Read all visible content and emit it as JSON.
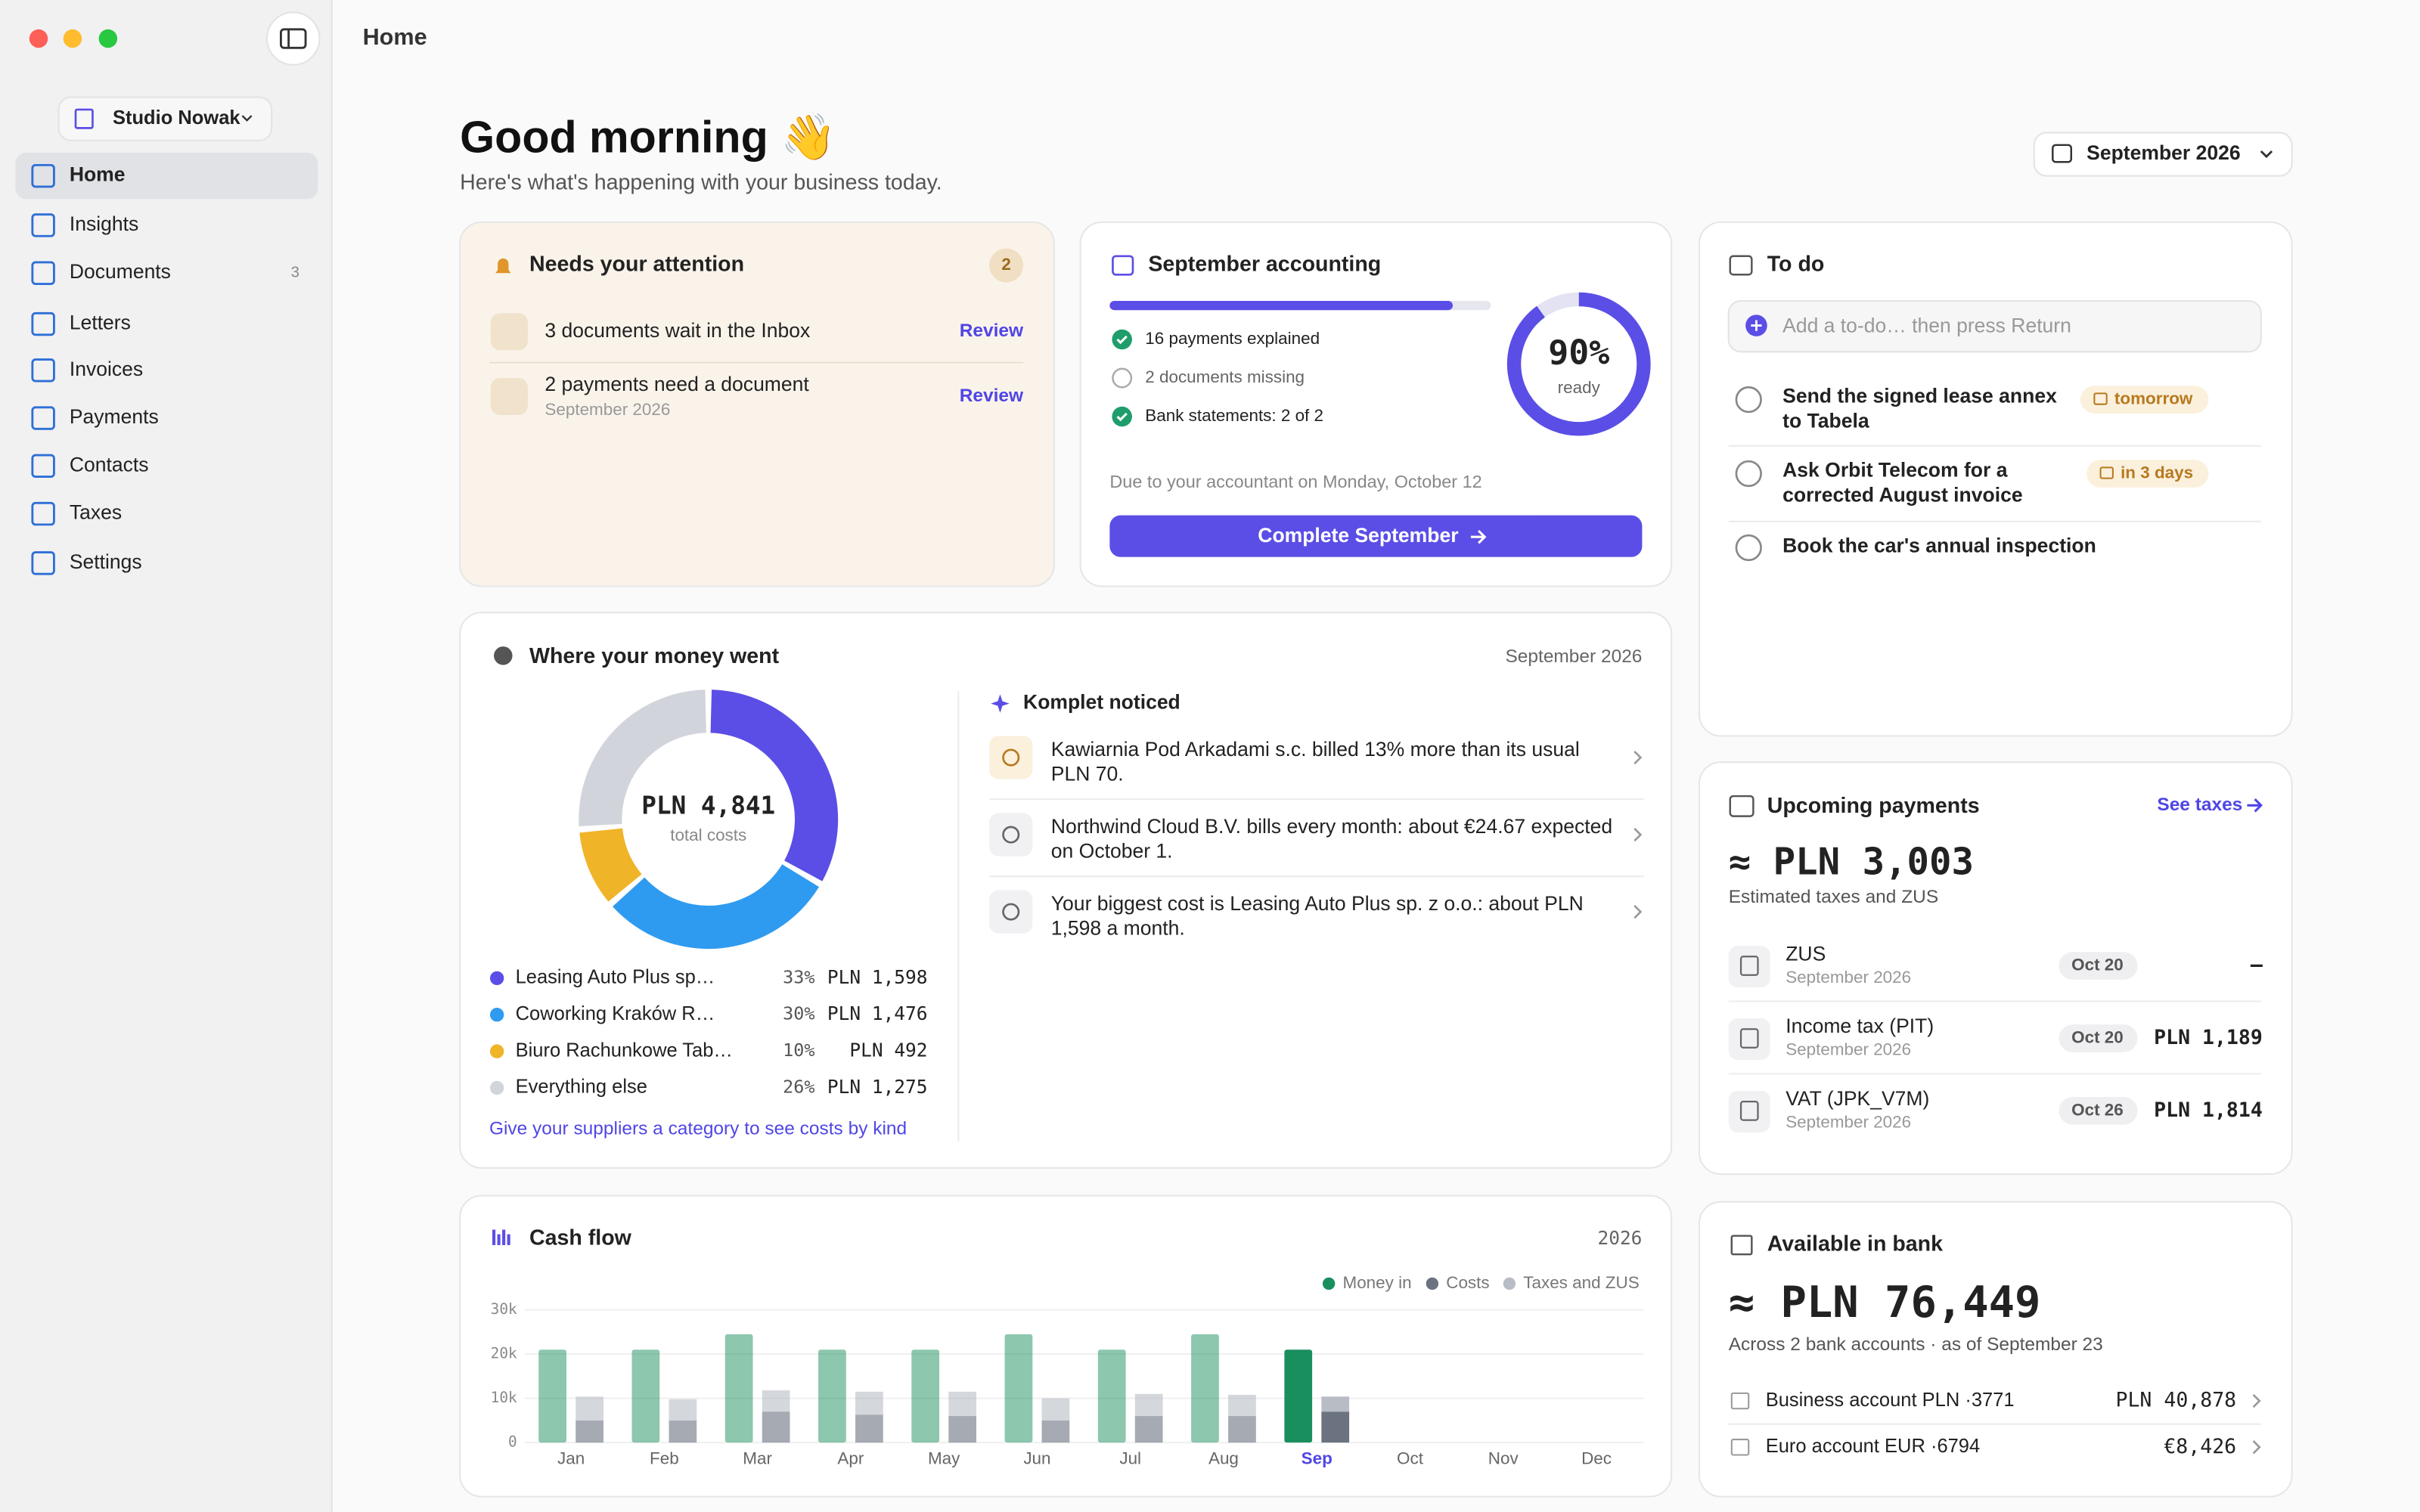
{
  "window": {
    "title": "Home"
  },
  "sidebar": {
    "workspace": "Studio Nowak",
    "nav": [
      {
        "label": "Home"
      },
      {
        "label": "Insights"
      },
      {
        "label": "Documents",
        "badge": "3"
      },
      {
        "label": "Letters"
      },
      {
        "label": "Invoices"
      },
      {
        "label": "Payments"
      },
      {
        "label": "Contacts"
      },
      {
        "label": "Taxes"
      },
      {
        "label": "Settings"
      }
    ]
  },
  "header": {
    "greeting": "Good morning 👋",
    "subtitle": "Here's what's happening with your business today.",
    "period": "September 2026"
  },
  "attention": {
    "title": "Needs your attention",
    "count": "2",
    "items": [
      {
        "text": "3 documents wait in the Inbox",
        "action": "Review"
      },
      {
        "text": "2 payments need a document",
        "detail": "September 2026",
        "action": "Review"
      }
    ]
  },
  "accounting": {
    "title": "September accounting",
    "progress": {
      "value": 90,
      "label": "90%"
    },
    "progress_caption": "ready",
    "checklist": [
      {
        "text": "16 payments explained",
        "done": true
      },
      {
        "text": "2 documents missing",
        "done": false
      },
      {
        "text": "Bank statements: 2 of 2",
        "done": true
      }
    ],
    "due": "Due to your accountant on Monday, October 12",
    "button": "Complete September"
  },
  "todo": {
    "title": "To do",
    "placeholder": "Add a to-do… then press Return",
    "items": [
      {
        "text": "Send the signed lease annex to Tabela",
        "due": "tomorrow"
      },
      {
        "text": "Ask Orbit Telecom for a corrected August invoice",
        "due": "in 3 days"
      },
      {
        "text": "Book the car's annual inspection"
      }
    ]
  },
  "spending": {
    "title": "Where your money went",
    "period": "September 2026",
    "chart_data": {
      "type": "donut",
      "total": "PLN 4,841",
      "total_caption": "total costs",
      "series": [
        {
          "name": "Leasing Auto Plus sp…",
          "color": "#5b4ee6",
          "value": 33,
          "value_label": "33%",
          "amount": "PLN 1,598"
        },
        {
          "name": "Coworking Kraków R…",
          "color": "#2f9bf0",
          "value": 30,
          "value_label": "30%",
          "amount": "PLN 1,476"
        },
        {
          "name": "Biuro Rachunkowe Tab…",
          "color": "#f0b429",
          "value": 10,
          "value_label": "10%",
          "amount": "PLN 492"
        },
        {
          "name": "Everything else",
          "color": "#d1d5db",
          "value": 26,
          "value_label": "26%",
          "amount": "PLN 1,275"
        }
      ]
    },
    "hint": "Give your suppliers a category to see costs by kind",
    "insights": {
      "title": "Komplet noticed",
      "items": [
        {
          "text": "Kawiarnia Pod Arkadami s.c. billed 13% more than its usual PLN 70."
        },
        {
          "text": "Northwind Cloud B.V. bills every month: about €24.67 expected on October 1."
        },
        {
          "text": "Your biggest cost is Leasing Auto Plus sp. z o.o.: about PLN 1,598 a month."
        }
      ]
    }
  },
  "upcoming": {
    "title": "Upcoming payments",
    "link": "See taxes",
    "total": "≈ PLN 3,003",
    "caption": "Estimated taxes and ZUS",
    "items": [
      {
        "name": "ZUS",
        "period": "September 2026",
        "due": "Oct 20",
        "amount": "–"
      },
      {
        "name": "Income tax (PIT)",
        "period": "September 2026",
        "due": "Oct 20",
        "amount": "PLN 1,189"
      },
      {
        "name": "VAT (JPK_V7M)",
        "period": "September 2026",
        "due": "Oct 26",
        "amount": "PLN 1,814"
      }
    ]
  },
  "cash_flow": {
    "title": "Cash flow",
    "year": "2026",
    "chart_data": {
      "type": "bar",
      "categories": [
        "Jan",
        "Feb",
        "Mar",
        "Apr",
        "May",
        "Jun",
        "Jul",
        "Aug",
        "Sep",
        "Oct",
        "Nov",
        "Dec"
      ],
      "highlight_index": 8,
      "ylim": [
        0,
        30000
      ],
      "yticks": [
        0,
        {
          "value": 10000,
          "label": "10k"
        },
        {
          "value": 20000,
          "label": "20k"
        },
        {
          "value": 30000,
          "label": "30k"
        }
      ],
      "series": [
        {
          "name": "Money in",
          "color": "#1a8f5e",
          "values": [
            21000,
            21000,
            24500,
            21000,
            21000,
            24500,
            21000,
            24500,
            21000,
            null,
            null,
            null
          ]
        },
        {
          "name": "Costs",
          "color": "#6b7280",
          "values": [
            5000,
            5000,
            7000,
            6300,
            6000,
            5000,
            6000,
            6000,
            7000,
            null,
            null,
            null
          ]
        },
        {
          "name": "Taxes and ZUS",
          "color": "#b8bcc4",
          "values": [
            5400,
            4800,
            4800,
            5200,
            5500,
            5000,
            5000,
            4800,
            3400,
            null,
            null,
            null
          ]
        }
      ]
    }
  },
  "bank": {
    "title": "Available in bank",
    "total": "≈ PLN 76,449",
    "caption": "Across 2 bank accounts · as of September 23",
    "accounts": [
      {
        "name": "Business account PLN ·3771",
        "balance": "PLN 40,878"
      },
      {
        "name": "Euro account EUR ·6794",
        "balance": "€8,426"
      }
    ]
  }
}
